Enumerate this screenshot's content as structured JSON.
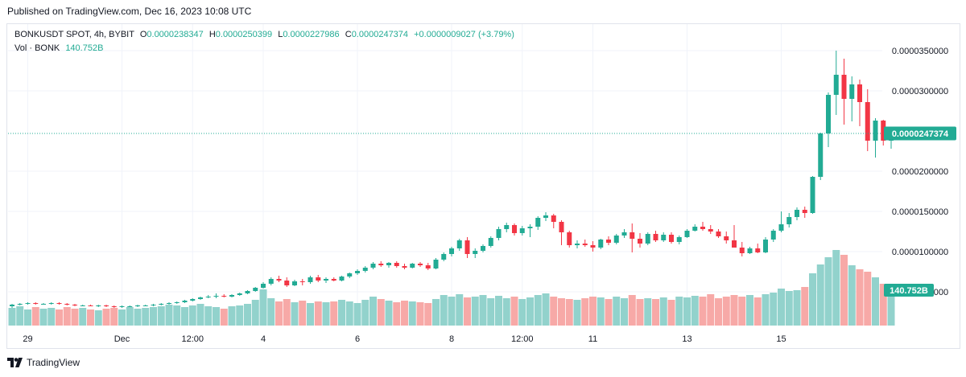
{
  "header": {
    "published_text": "Published on TradingView.com, Dec 16, 2023 10:08 UTC"
  },
  "legend": {
    "symbol": "BONKUSDT SPOT, 4h, BYBIT",
    "o_label": "O",
    "o_value": "0.0000238347",
    "h_label": "H",
    "h_value": "0.0000250399",
    "l_label": "L",
    "l_value": "0.0000227986",
    "c_label": "C",
    "c_value": "0.0000247374",
    "change": "+0.0000009027 (+3.79%)",
    "vol_label": "Vol · BONK",
    "vol_value": "140.752B"
  },
  "footer": {
    "brand": "TradingView"
  },
  "colors": {
    "up": "#22ab94",
    "down": "#f23645",
    "vol_up": "#92d2cc",
    "vol_down": "#f7a9a7",
    "grid": "#f0f3fa",
    "axis_text": "#131722"
  },
  "chart_data": {
    "type": "candlestick",
    "price_badge": "0.0000247374",
    "volume_badge": "140.752B",
    "ylim": [
      1.25e-06,
      3.82e-05
    ],
    "y_ticks": [
      {
        "value": 3.5e-05,
        "label": "0.0000350000"
      },
      {
        "value": 3e-05,
        "label": "0.0000300000"
      },
      {
        "value": 2e-05,
        "label": "0.0000200000"
      },
      {
        "value": 1.5e-05,
        "label": "0.0000150000"
      },
      {
        "value": 1e-05,
        "label": "0.0000100000"
      },
      {
        "value": 5e-06,
        "label": "0.0000050000"
      }
    ],
    "x_ticks": [
      {
        "index": 2,
        "label": "29"
      },
      {
        "index": 14,
        "label": "Dec"
      },
      {
        "index": 23,
        "label": "12:00"
      },
      {
        "index": 32,
        "label": "4"
      },
      {
        "index": 44,
        "label": "6"
      },
      {
        "index": 56,
        "label": "8"
      },
      {
        "index": 65,
        "label": "12:00"
      },
      {
        "index": 74,
        "label": "11"
      },
      {
        "index": 86,
        "label": "13"
      },
      {
        "index": 98,
        "label": "15"
      }
    ],
    "ohlc": [
      [
        3.2e-06,
        3.5e-06,
        3e-06,
        3.4e-06
      ],
      [
        3.4e-06,
        3.6e-06,
        3.3e-06,
        3.5e-06
      ],
      [
        3.5e-06,
        3.7e-06,
        3.4e-06,
        3.6e-06
      ],
      [
        3.6e-06,
        3.7e-06,
        3.4e-06,
        3.5e-06
      ],
      [
        3.5e-06,
        3.6e-06,
        3.4e-06,
        3.5e-06
      ],
      [
        3.5e-06,
        3.7e-06,
        3.4e-06,
        3.6e-06
      ],
      [
        3.6e-06,
        3.7e-06,
        3.4e-06,
        3.5e-06
      ],
      [
        3.5e-06,
        3.6e-06,
        3.3e-06,
        3.4e-06
      ],
      [
        3.4e-06,
        3.5e-06,
        3.2e-06,
        3.3e-06
      ],
      [
        3.3e-06,
        3.4e-06,
        3.2e-06,
        3.3e-06
      ],
      [
        3.3e-06,
        3.4e-06,
        3.2e-06,
        3.2e-06
      ],
      [
        3.2e-06,
        3.4e-06,
        3.1e-06,
        3.3e-06
      ],
      [
        3.3e-06,
        3.4e-06,
        3.1e-06,
        3.2e-06
      ],
      [
        3.2e-06,
        3.3e-06,
        3e-06,
        3.1e-06
      ],
      [
        3.1e-06,
        3.3e-06,
        3e-06,
        3.2e-06
      ],
      [
        3.2e-06,
        3.3e-06,
        3.1e-06,
        3.2e-06
      ],
      [
        3.2e-06,
        3.4e-06,
        3.1e-06,
        3.3e-06
      ],
      [
        3.3e-06,
        3.4e-06,
        3.2e-06,
        3.3e-06
      ],
      [
        3.3e-06,
        3.5e-06,
        3.2e-06,
        3.4e-06
      ],
      [
        3.4e-06,
        3.6e-06,
        3.3e-06,
        3.5e-06
      ],
      [
        3.5e-06,
        3.7e-06,
        3.4e-06,
        3.6e-06
      ],
      [
        3.6e-06,
        3.8e-06,
        3.5e-06,
        3.7e-06
      ],
      [
        3.7e-06,
        4e-06,
        3.6e-06,
        3.9e-06
      ],
      [
        3.9e-06,
        4.2e-06,
        3.8e-06,
        4.1e-06
      ],
      [
        4.1e-06,
        4.4e-06,
        4e-06,
        4.3e-06
      ],
      [
        4.3e-06,
        4.6e-06,
        4.2e-06,
        4.4e-06
      ],
      [
        4.4e-06,
        4.8e-06,
        4.2e-06,
        4.5e-06
      ],
      [
        4.5e-06,
        4.7e-06,
        4.3e-06,
        4.4e-06
      ],
      [
        4.4e-06,
        4.7e-06,
        4.3e-06,
        4.6e-06
      ],
      [
        4.6e-06,
        4.9e-06,
        4.5e-06,
        4.8e-06
      ],
      [
        4.8e-06,
        5.2e-06,
        4.7e-06,
        5.1e-06
      ],
      [
        5.1e-06,
        5.6e-06,
        5e-06,
        5.5e-06
      ],
      [
        5.5e-06,
        6.2e-06,
        5.4e-06,
        6e-06
      ],
      [
        6e-06,
        6.8e-06,
        5.8e-06,
        6.6e-06
      ],
      [
        6.6e-06,
        7e-06,
        6.2e-06,
        6.4e-06
      ],
      [
        6.4e-06,
        6.8e-06,
        5.6e-06,
        5.8e-06
      ],
      [
        5.8e-06,
        6.5e-06,
        5.7e-06,
        6.3e-06
      ],
      [
        6.3e-06,
        6.6e-06,
        5.8e-06,
        6.2e-06
      ],
      [
        6.2e-06,
        7e-06,
        6e-06,
        6.8e-06
      ],
      [
        6.8e-06,
        7.1e-06,
        6.2e-06,
        6.4e-06
      ],
      [
        6.4e-06,
        6.8e-06,
        6.1e-06,
        6.6e-06
      ],
      [
        6.6e-06,
        6.8e-06,
        6.3e-06,
        6.4e-06
      ],
      [
        6.4e-06,
        7e-06,
        6.3e-06,
        6.9e-06
      ],
      [
        6.9e-06,
        7.4e-06,
        6.7e-06,
        7.3e-06
      ],
      [
        7.3e-06,
        7.8e-06,
        7.1e-06,
        7.6e-06
      ],
      [
        7.6e-06,
        8.2e-06,
        7.4e-06,
        8e-06
      ],
      [
        8e-06,
        8.7e-06,
        7.8e-06,
        8.5e-06
      ],
      [
        8.5e-06,
        8.8e-06,
        8.1e-06,
        8.3e-06
      ],
      [
        8.3e-06,
        8.7e-06,
        8e-06,
        8.6e-06
      ],
      [
        8.6e-06,
        8.8e-06,
        8e-06,
        8.2e-06
      ],
      [
        8.2e-06,
        8.5e-06,
        7.8e-06,
        8e-06
      ],
      [
        8e-06,
        8.6e-06,
        7.9e-06,
        8.5e-06
      ],
      [
        8.5e-06,
        8.7e-06,
        8.1e-06,
        8.3e-06
      ],
      [
        8.3e-06,
        8.6e-06,
        7.7e-06,
        7.9e-06
      ],
      [
        7.9e-06,
        9.2e-06,
        7.8e-06,
        9e-06
      ],
      [
        9e-06,
        9.9e-06,
        8.8e-06,
        9.7e-06
      ],
      [
        9.7e-06,
        1.06e-05,
        9.4e-06,
        1.04e-05
      ],
      [
        1.04e-05,
        1.16e-05,
        1.01e-05,
        1.14e-05
      ],
      [
        1.14e-05,
        1.18e-05,
        9.2e-06,
        9.7e-06
      ],
      [
        9.7e-06,
        1.04e-05,
        9.2e-06,
        1.01e-05
      ],
      [
        1.01e-05,
        1.09e-05,
        9.9e-06,
        1.07e-05
      ],
      [
        1.07e-05,
        1.19e-05,
        1.05e-05,
        1.17e-05
      ],
      [
        1.17e-05,
        1.31e-05,
        1.14e-05,
        1.28e-05
      ],
      [
        1.28e-05,
        1.36e-05,
        1.24e-05,
        1.33e-05
      ],
      [
        1.33e-05,
        1.35e-05,
        1.2e-05,
        1.23e-05
      ],
      [
        1.23e-05,
        1.32e-05,
        1.2e-05,
        1.29e-05
      ],
      [
        1.29e-05,
        1.34e-05,
        1.18e-05,
        1.31e-05
      ],
      [
        1.31e-05,
        1.44e-05,
        1.27e-05,
        1.42e-05
      ],
      [
        1.42e-05,
        1.49e-05,
        1.38e-05,
        1.45e-05
      ],
      [
        1.45e-05,
        1.47e-05,
        1.29e-05,
        1.37e-05
      ],
      [
        1.37e-05,
        1.39e-05,
        1.08e-05,
        1.24e-05
      ],
      [
        1.24e-05,
        1.26e-05,
        1.05e-05,
        1.08e-05
      ],
      [
        1.08e-05,
        1.14e-05,
        1.04e-05,
        1.1e-05
      ],
      [
        1.1e-05,
        1.15e-05,
        1.06e-05,
        1.08e-05
      ],
      [
        1.08e-05,
        1.13e-05,
        1e-05,
        1.05e-05
      ],
      [
        1.05e-05,
        1.16e-05,
        1.03e-05,
        1.15e-05
      ],
      [
        1.15e-05,
        1.19e-05,
        1.08e-05,
        1.11e-05
      ],
      [
        1.11e-05,
        1.22e-05,
        1.09e-05,
        1.2e-05
      ],
      [
        1.2e-05,
        1.28e-05,
        1.17e-05,
        1.24e-05
      ],
      [
        1.24e-05,
        1.35e-05,
        9.9e-06,
        1.16e-05
      ],
      [
        1.16e-05,
        1.23e-05,
        1.05e-05,
        1.1e-05
      ],
      [
        1.1e-05,
        1.24e-05,
        1.08e-05,
        1.22e-05
      ],
      [
        1.22e-05,
        1.26e-05,
        1.12e-05,
        1.14e-05
      ],
      [
        1.14e-05,
        1.24e-05,
        1.12e-05,
        1.21e-05
      ],
      [
        1.21e-05,
        1.24e-05,
        1.1e-05,
        1.12e-05
      ],
      [
        1.12e-05,
        1.2e-05,
        1.09e-05,
        1.18e-05
      ],
      [
        1.18e-05,
        1.28e-05,
        1.17e-05,
        1.26e-05
      ],
      [
        1.26e-05,
        1.34e-05,
        1.25e-05,
        1.31e-05
      ],
      [
        1.31e-05,
        1.37e-05,
        1.26e-05,
        1.28e-05
      ],
      [
        1.28e-05,
        1.33e-05,
        1.22e-05,
        1.25e-05
      ],
      [
        1.25e-05,
        1.28e-05,
        1.17e-05,
        1.19e-05
      ],
      [
        1.19e-05,
        1.25e-05,
        1.1e-05,
        1.14e-05
      ],
      [
        1.14e-05,
        1.33e-05,
        1.05e-05,
        1.05e-05
      ],
      [
        1.05e-05,
        1.12e-05,
        9.4e-06,
        9.8e-06
      ],
      [
        9.8e-06,
        1.06e-05,
        9.7e-06,
        1.04e-05
      ],
      [
        1.04e-05,
        1.1e-05,
        9.8e-06,
        9.9e-06
      ],
      [
        9.9e-06,
        1.18e-05,
        9.8e-06,
        1.15e-05
      ],
      [
        1.15e-05,
        1.28e-05,
        1.12e-05,
        1.26e-05
      ],
      [
        1.26e-05,
        1.5e-05,
        1.24e-05,
        1.34e-05
      ],
      [
        1.34e-05,
        1.48e-05,
        1.3e-05,
        1.43e-05
      ],
      [
        1.43e-05,
        1.55e-05,
        1.39e-05,
        1.52e-05
      ],
      [
        1.52e-05,
        1.56e-05,
        1.42e-05,
        1.48e-05
      ],
      [
        1.48e-05,
        1.94e-05,
        1.47e-05,
        1.93e-05
      ],
      [
        1.93e-05,
        2.48e-05,
        1.89e-05,
        2.47e-05
      ],
      [
        2.47e-05,
        2.98e-05,
        2.3e-05,
        2.95e-05
      ],
      [
        2.95e-05,
        3.5e-05,
        2.7e-05,
        3.2e-05
      ],
      [
        3.2e-05,
        3.4e-05,
        2.58e-05,
        2.9e-05
      ],
      [
        2.9e-05,
        3.18e-05,
        2.62e-05,
        3.08e-05
      ],
      [
        3.08e-05,
        3.14e-05,
        2.56e-05,
        2.86e-05
      ],
      [
        2.86e-05,
        3.02e-05,
        2.25e-05,
        2.38e-05
      ],
      [
        2.38e-05,
        2.66e-05,
        2.17e-05,
        2.63e-05
      ],
      [
        2.63e-05,
        2.64e-05,
        2.32e-05,
        2.38e-05
      ],
      [
        2.38e-05,
        2.5e-05,
        2.28e-05,
        2.47e-05
      ]
    ],
    "volume": [
      2.2,
      2.4,
      2.0,
      2.3,
      2.1,
      2.2,
      2.0,
      2.3,
      2.1,
      2.2,
      2.0,
      1.9,
      2.1,
      2.2,
      2.0,
      2.3,
      2.1,
      2.2,
      2.3,
      2.4,
      2.6,
      2.5,
      2.3,
      2.5,
      2.7,
      2.4,
      2.3,
      2.1,
      2.4,
      2.5,
      2.7,
      3.2,
      4.5,
      3.4,
      3.0,
      3.3,
      2.9,
      3.1,
      2.8,
      3.0,
      2.9,
      3.0,
      3.2,
      3.0,
      2.8,
      3.2,
      3.6,
      3.3,
      3.1,
      2.9,
      3.1,
      3.0,
      2.9,
      2.8,
      3.3,
      3.8,
      3.6,
      3.9,
      3.5,
      3.6,
      3.8,
      3.4,
      3.7,
      3.4,
      3.6,
      3.3,
      3.5,
      3.8,
      4.0,
      3.6,
      3.4,
      3.3,
      3.2,
      3.4,
      3.6,
      3.5,
      3.3,
      3.6,
      3.4,
      3.8,
      3.3,
      3.4,
      3.3,
      3.5,
      3.2,
      3.6,
      3.5,
      3.7,
      3.6,
      3.9,
      3.4,
      3.6,
      3.8,
      3.6,
      3.8,
      3.5,
      3.9,
      4.1,
      4.6,
      4.3,
      4.4,
      4.8,
      6.5,
      7.6,
      8.5,
      9.4,
      8.8,
      7.5,
      7.0,
      6.7,
      6.0,
      5.2,
      4.4
    ]
  }
}
